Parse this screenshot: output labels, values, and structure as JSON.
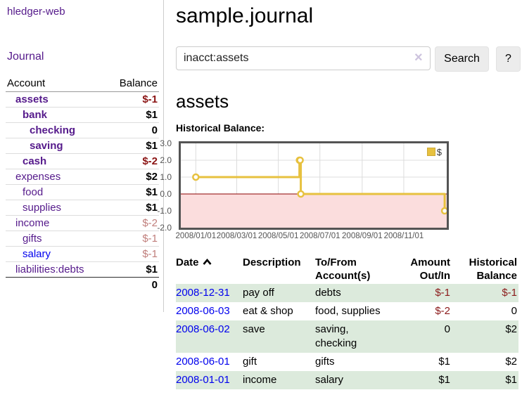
{
  "sidebar": {
    "brand": "hledger-web",
    "nav_journal": "Journal",
    "accounts_table": {
      "headers": {
        "account": "Account",
        "balance": "Balance"
      },
      "rows": [
        {
          "name": "assets",
          "balance": "$-1",
          "depth": 1,
          "matched": true,
          "negative": "strong"
        },
        {
          "name": "bank",
          "balance": "$1",
          "depth": 2,
          "matched": true,
          "negative": "none"
        },
        {
          "name": "checking",
          "balance": "0",
          "depth": 3,
          "matched": true,
          "negative": "none"
        },
        {
          "name": "saving",
          "balance": "$1",
          "depth": 3,
          "matched": true,
          "negative": "none"
        },
        {
          "name": "cash",
          "balance": "$-2",
          "depth": 2,
          "matched": true,
          "negative": "strong"
        },
        {
          "name": "expenses",
          "balance": "$2",
          "depth": 1,
          "matched": false,
          "negative": "none"
        },
        {
          "name": "food",
          "balance": "$1",
          "depth": 2,
          "matched": false,
          "negative": "none"
        },
        {
          "name": "supplies",
          "balance": "$1",
          "depth": 2,
          "matched": false,
          "negative": "none"
        },
        {
          "name": "income",
          "balance": "$-2",
          "depth": 1,
          "matched": false,
          "negative": "dim"
        },
        {
          "name": "gifts",
          "balance": "$-1",
          "depth": 2,
          "matched": false,
          "negative": "dim"
        },
        {
          "name": "salary",
          "balance": "$-1",
          "depth": 2,
          "matched": false,
          "negative": "dim",
          "unvisited": true
        },
        {
          "name": "liabilities:debts",
          "balance": "$1",
          "depth": 1,
          "matched": false,
          "negative": "none"
        }
      ],
      "total": "0"
    }
  },
  "header": {
    "title": "sample.journal"
  },
  "search": {
    "value": "inacct:assets",
    "clear_icon": "×",
    "button": "Search",
    "help_button": "?"
  },
  "account_page": {
    "heading": "assets",
    "chart_title": "Historical Balance:"
  },
  "chart_data": {
    "type": "step-line",
    "title": "Historical Balance",
    "legend": "$",
    "legend_position": "top-right",
    "points": [
      {
        "date": "2008-01-01",
        "value": 1
      },
      {
        "date": "2008-06-01",
        "value": 2
      },
      {
        "date": "2008-06-02",
        "value": 2
      },
      {
        "date": "2008-06-03",
        "value": 0
      },
      {
        "date": "2008-12-31",
        "value": -1
      }
    ],
    "ylim": [
      -2,
      3
    ],
    "y_ticks": [
      3.0,
      2.0,
      1.0,
      0.0,
      -1.0,
      -2.0
    ],
    "xlim": [
      "2007-12-10",
      "2009-01-03"
    ],
    "x_ticks": [
      {
        "date": "2008-01-01",
        "label": "2008/01/01"
      },
      {
        "date": "2008-03-01",
        "label": "2008/03/01"
      },
      {
        "date": "2008-05-01",
        "label": "2008/05/01"
      },
      {
        "date": "2008-07-01",
        "label": "2008/07/01"
      },
      {
        "date": "2008-09-01",
        "label": "2008/09/01"
      },
      {
        "date": "2008-11-01",
        "label": "2008/11/01"
      }
    ],
    "grid": true,
    "colors": {
      "line": "#e7c13f",
      "marker_fill": "#ffffff",
      "negative_region": "#fbdddd",
      "zero_line": "#8b0000",
      "grid": "#dcdcdc",
      "border": "#545454"
    }
  },
  "register_table": {
    "headers": [
      "Date",
      "Description",
      "To/From Account(s)",
      "Amount Out/In",
      "Historical Balance"
    ],
    "sort": {
      "column": "Date",
      "direction": "ascending"
    },
    "rows": [
      {
        "date": "2008-12-31",
        "description": "pay off",
        "accounts": "debts",
        "amount": "$-1",
        "balance": "$-1",
        "amount_negative": true,
        "balance_negative": true
      },
      {
        "date": "2008-06-03",
        "description": "eat & shop",
        "accounts": "food, supplies",
        "amount": "$-2",
        "balance": "0",
        "amount_negative": true,
        "balance_negative": false
      },
      {
        "date": "2008-06-02",
        "description": "save",
        "accounts": "saving, checking",
        "amount": "0",
        "balance": "$2",
        "amount_negative": false,
        "balance_negative": false
      },
      {
        "date": "2008-06-01",
        "description": "gift",
        "accounts": "gifts",
        "amount": "$1",
        "balance": "$2",
        "amount_negative": false,
        "balance_negative": false
      },
      {
        "date": "2008-01-01",
        "description": "income",
        "accounts": "salary",
        "amount": "$1",
        "balance": "$1",
        "amount_negative": false,
        "balance_negative": false
      }
    ]
  }
}
